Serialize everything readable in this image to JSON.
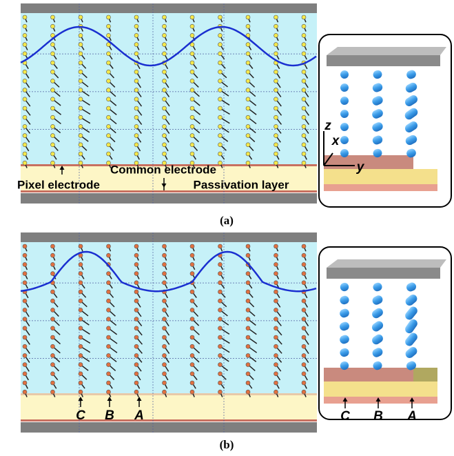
{
  "panels": [
    {
      "label": "(a)",
      "common_electrode": "Common electrode",
      "pixel_electrode": "Pixel electrode",
      "passivation_layer": "Passivation layer",
      "axes": {
        "z": "z",
        "x": "x",
        "y": "y"
      }
    },
    {
      "label": "(b)",
      "points": [
        "C",
        "B",
        "A"
      ],
      "inset_points": [
        "C",
        "B",
        "A"
      ]
    }
  ]
}
